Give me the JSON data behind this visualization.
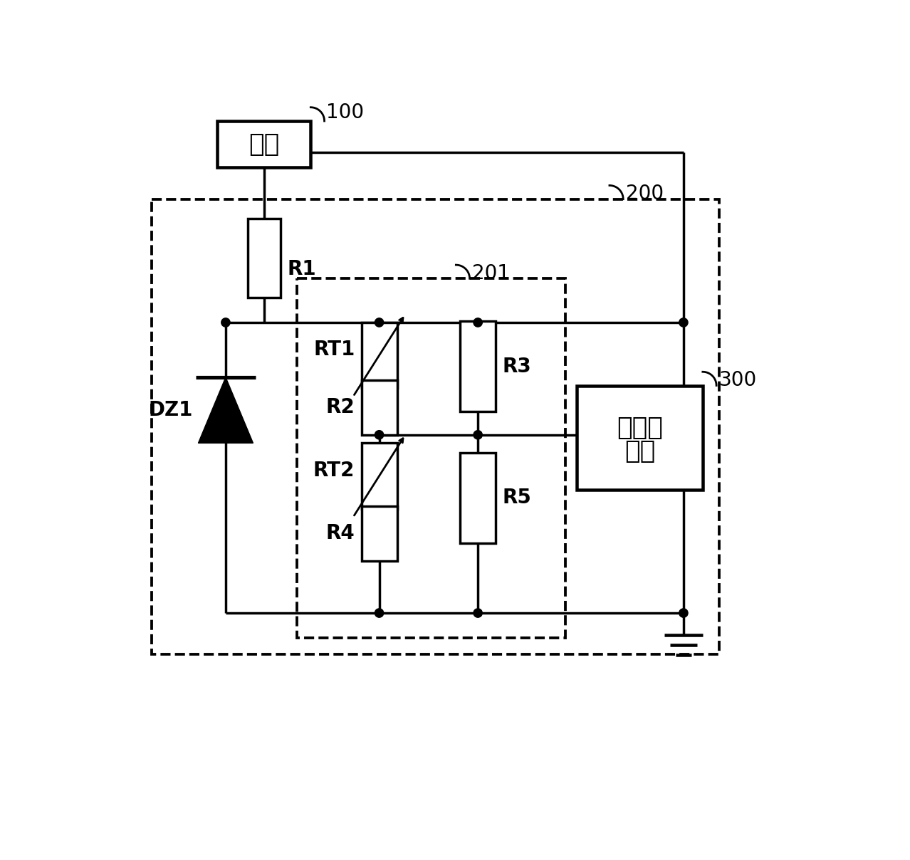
{
  "bg_color": "#ffffff",
  "line_color": "#000000",
  "lw": 2.5,
  "labels": {
    "power_box": "电源",
    "power_ref": "100",
    "outer_box_ref": "200",
    "inner_box_ref": "201",
    "vco_line1": "压控振",
    "vco_line2": "荡器",
    "vco_ref": "300",
    "R1": "R1",
    "R2": "R2",
    "R3": "R3",
    "R4": "R4",
    "R5": "R5",
    "RT1": "RT1",
    "RT2": "RT2",
    "DZ1": "DZ1"
  },
  "font_size_label": 20,
  "font_size_ref": 20,
  "font_size_box": 26
}
